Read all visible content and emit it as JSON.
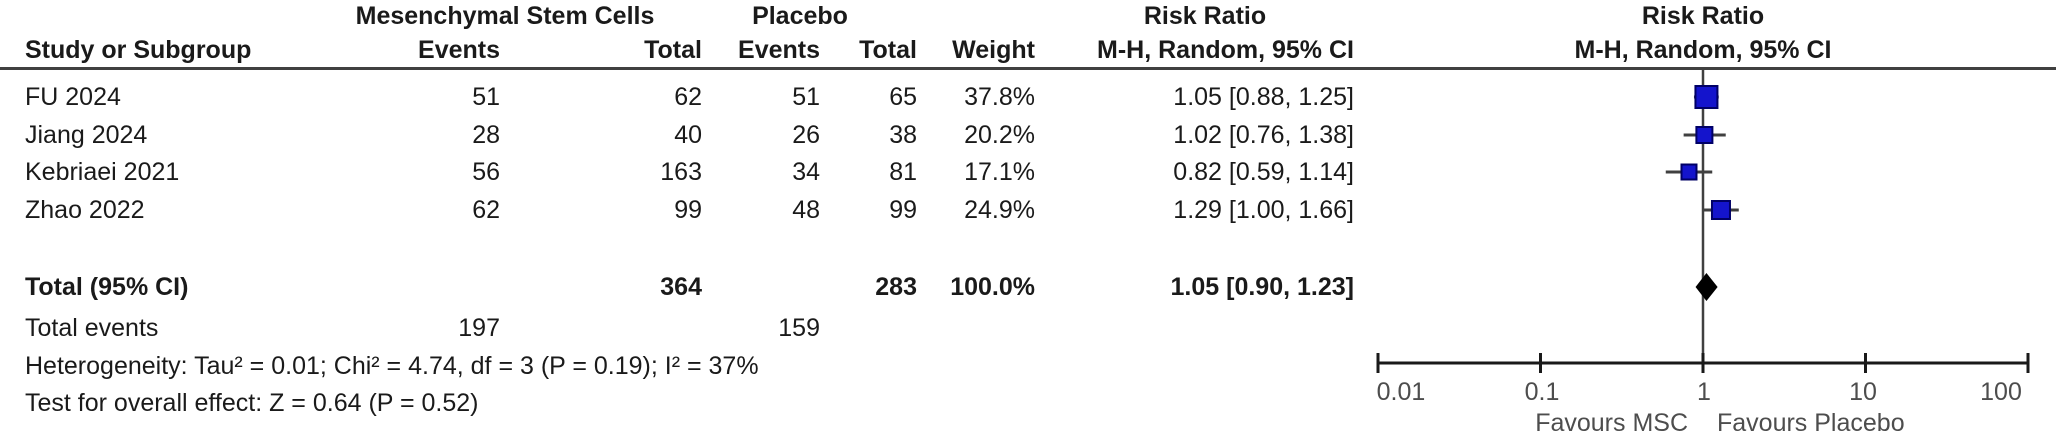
{
  "table": {
    "group_headers": {
      "msc": "Mesenchymal Stem Cells",
      "placebo": "Placebo",
      "risk_ratio_left": "Risk Ratio",
      "risk_ratio_right": "Risk Ratio"
    },
    "columns": {
      "study": "Study or Subgroup",
      "msc_events": "Events",
      "msc_total": "Total",
      "pl_events": "Events",
      "pl_total": "Total",
      "weight": "Weight",
      "mh_ci_left": "M-H, Random, 95% CI",
      "mh_ci_right": "M-H, Random, 95% CI"
    },
    "rows": [
      {
        "study": "FU 2024",
        "msc_events": "51",
        "msc_total": "62",
        "pl_events": "51",
        "pl_total": "65",
        "weight": "37.8%",
        "rr_ci": "1.05 [0.88, 1.25]"
      },
      {
        "study": "Jiang 2024",
        "msc_events": "28",
        "msc_total": "40",
        "pl_events": "26",
        "pl_total": "38",
        "weight": "20.2%",
        "rr_ci": "1.02 [0.76, 1.38]"
      },
      {
        "study": "Kebriaei 2021",
        "msc_events": "56",
        "msc_total": "163",
        "pl_events": "34",
        "pl_total": "81",
        "weight": "17.1%",
        "rr_ci": "0.82 [0.59, 1.14]"
      },
      {
        "study": "Zhao 2022",
        "msc_events": "62",
        "msc_total": "99",
        "pl_events": "48",
        "pl_total": "99",
        "weight": "24.9%",
        "rr_ci": "1.29 [1.00, 1.66]"
      }
    ],
    "total_row": {
      "label": "Total (95% CI)",
      "msc_total": "364",
      "pl_total": "283",
      "weight": "100.0%",
      "rr_ci": "1.05 [0.90, 1.23]"
    },
    "total_events": {
      "label": "Total events",
      "msc": "197",
      "pl": "159"
    },
    "heterogeneity": "Heterogeneity: Tau² = 0.01; Chi² = 4.74, df = 3 (P = 0.19); I² = 37%",
    "overall_effect": "Test for overall effect: Z = 0.64 (P = 0.52)"
  },
  "chart_data": {
    "type": "scatter",
    "subtype": "forest_plot",
    "effect_measure": "Risk Ratio, M-H, Random, 95% CI",
    "scale": "log10",
    "axis": {
      "ticks": [
        0.01,
        0.1,
        1,
        10,
        100
      ],
      "tick_labels": [
        "0.01",
        "0.1",
        "1",
        "10",
        "100"
      ],
      "xlim": [
        0.01,
        100
      ],
      "label_left": "Favours MSC",
      "label_right": "Favours Placebo"
    },
    "studies": [
      {
        "name": "FU 2024",
        "rr": 1.05,
        "ci": [
          0.88,
          1.25
        ],
        "weight_pct": 37.8
      },
      {
        "name": "Jiang 2024",
        "rr": 1.02,
        "ci": [
          0.76,
          1.38
        ],
        "weight_pct": 20.2
      },
      {
        "name": "Kebriaei 2021",
        "rr": 0.82,
        "ci": [
          0.59,
          1.14
        ],
        "weight_pct": 17.1
      },
      {
        "name": "Zhao 2022",
        "rr": 1.29,
        "ci": [
          1.0,
          1.66
        ],
        "weight_pct": 24.9
      }
    ],
    "total": {
      "rr": 1.05,
      "ci": [
        0.9,
        1.23
      ]
    },
    "colors": {
      "square_fill": "#1414CC",
      "square_border": "#000066",
      "diamond": "#000000",
      "lines": "#404040"
    }
  }
}
